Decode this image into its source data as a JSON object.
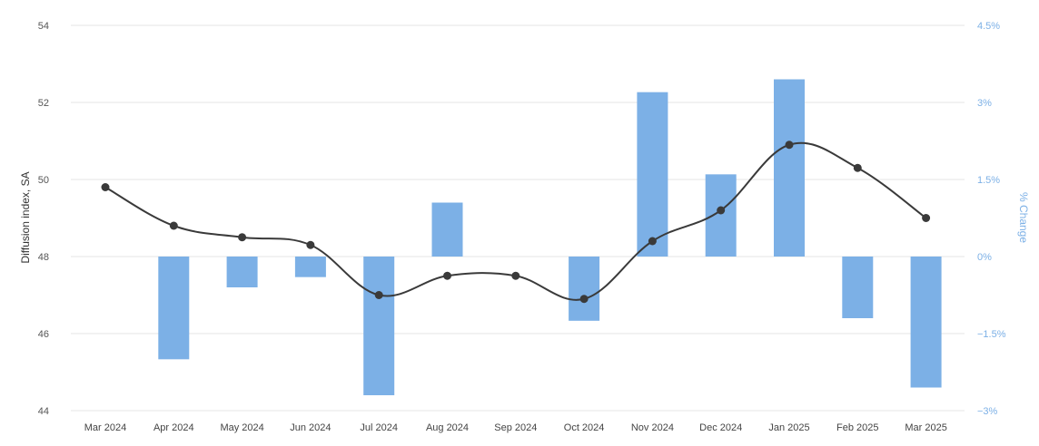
{
  "chart_data": {
    "type": "bar",
    "categories": [
      "Mar 2024",
      "Apr 2024",
      "May 2024",
      "Jun 2024",
      "Jul 2024",
      "Aug 2024",
      "Sep 2024",
      "Oct 2024",
      "Nov 2024",
      "Dec 2024",
      "Jan 2025",
      "Feb 2025",
      "Mar 2025"
    ],
    "title": "",
    "xlabel": "",
    "ylabel": "Diffusion index, SA",
    "y2label": "% Change",
    "ylim": [
      44,
      54
    ],
    "y2lim": [
      -3,
      4.5
    ],
    "yticks": [
      "44",
      "46",
      "48",
      "50",
      "52",
      "54"
    ],
    "yticks_values": [
      44,
      46,
      48,
      50,
      52,
      54
    ],
    "y2ticks": [
      "−3%",
      "−1.5%",
      "0%",
      "1.5%",
      "3%",
      "4.5%"
    ],
    "y2ticks_values": [
      -3,
      -1.5,
      0,
      1.5,
      3,
      4.5
    ],
    "grid": true,
    "series": [
      {
        "type": "bar",
        "axis": "right",
        "color": "#7cb0e6",
        "values": [
          null,
          -2.0,
          -0.6,
          -0.4,
          -2.7,
          1.05,
          null,
          -1.25,
          3.2,
          1.6,
          3.45,
          -1.2,
          -2.55
        ]
      },
      {
        "type": "line",
        "axis": "left",
        "color": "#3a3a3a",
        "smooth": true,
        "values": [
          49.8,
          48.8,
          48.5,
          48.3,
          47.0,
          47.5,
          47.5,
          46.9,
          48.4,
          49.2,
          50.9,
          50.3,
          49.0
        ]
      }
    ]
  }
}
